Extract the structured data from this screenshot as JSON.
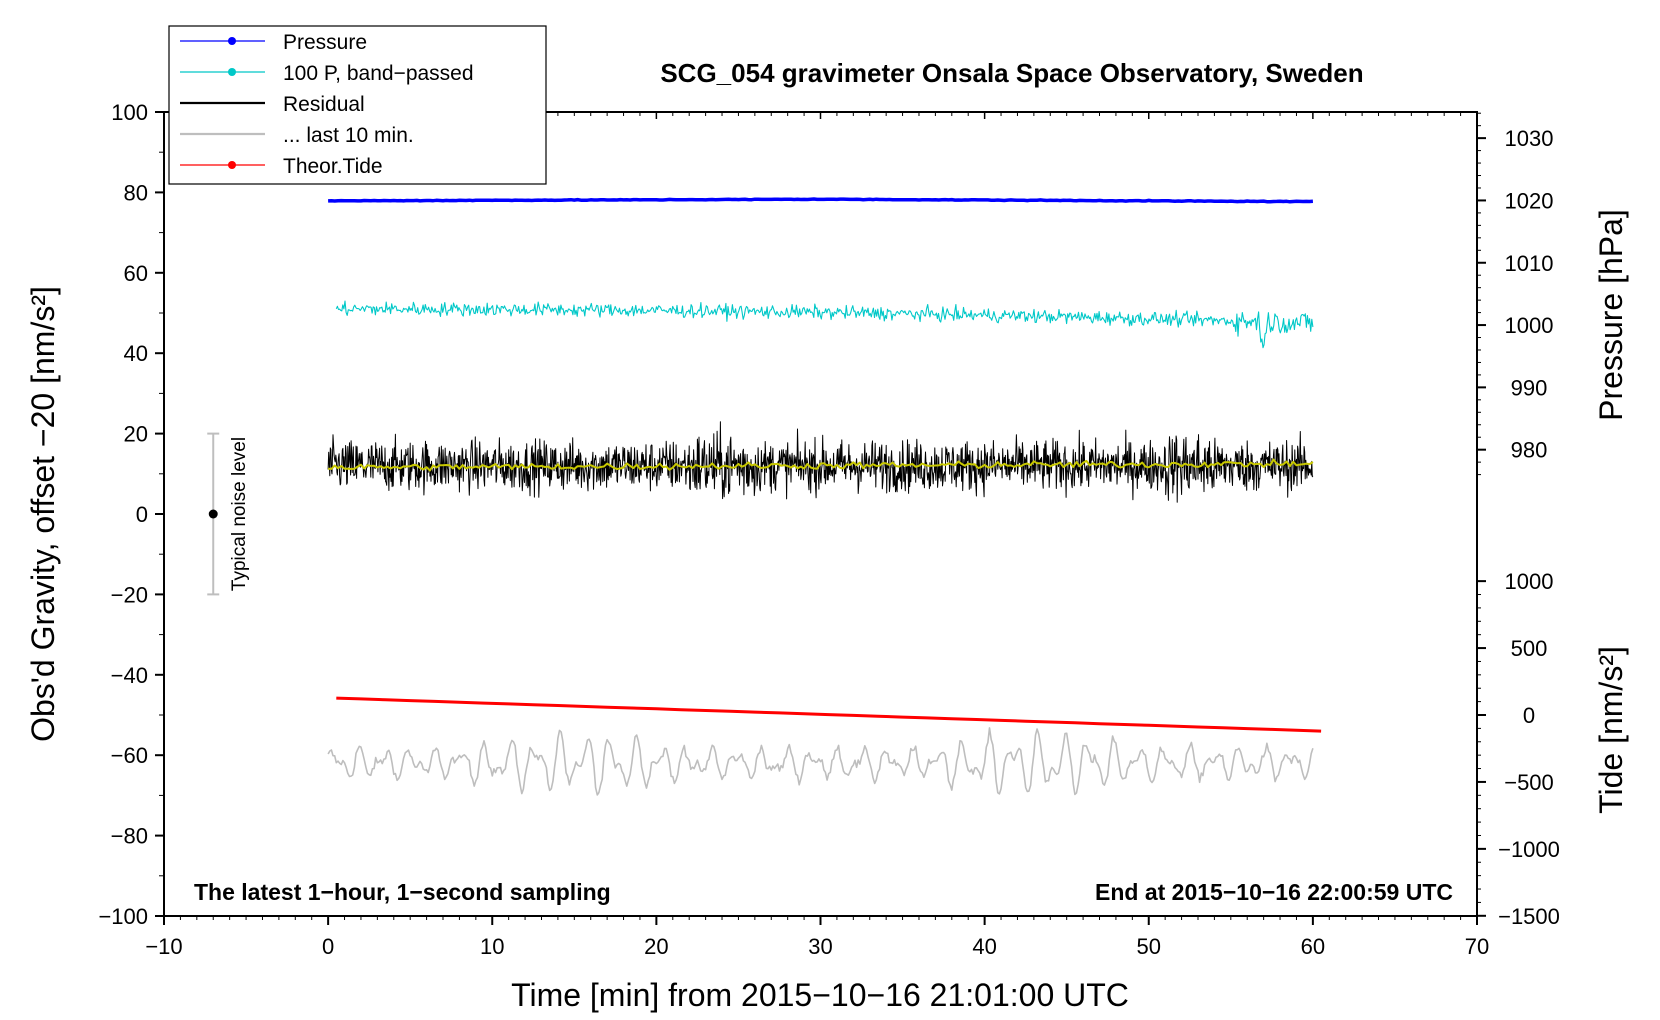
{
  "chart_data": {
    "type": "line",
    "title": "SCG_054 gravimeter Onsala Space Observatory, Sweden",
    "xlabel": "Time [min] from 2015−10−16 21:01:00 UTC",
    "ylabel_left": "Obs'd Gravity, offset −20 [nm/s²]",
    "ylabel_right_pressure": "Pressure [hPa]",
    "ylabel_right_tide": "Tide [nm/s²]",
    "xlim": [
      -10,
      70
    ],
    "ylim_left": [
      -100,
      100
    ],
    "x_ticks": [
      -10,
      0,
      10,
      20,
      30,
      40,
      50,
      60,
      70
    ],
    "x_tick_labels": [
      "−10",
      "0",
      "10",
      "20",
      "30",
      "40",
      "50",
      "60",
      "70"
    ],
    "y_left_ticks": [
      100,
      80,
      60,
      40,
      20,
      0,
      -20,
      -40,
      -60,
      -80,
      -100
    ],
    "y_left_tick_labels": [
      "100",
      "80",
      "60",
      "40",
      "20",
      "0",
      "−20",
      "−40",
      "−60",
      "−80",
      "−100"
    ],
    "pressure_axis": {
      "ticks": [
        1030,
        1020,
        1010,
        1000,
        990,
        980
      ],
      "labels": [
        "1030",
        "1020",
        "1010",
        "1000",
        "990",
        "980"
      ],
      "gravity_at_1020": 78,
      "gravity_per_hpa": 1.55
    },
    "tide_axis": {
      "ticks": [
        1000,
        500,
        0,
        -500,
        -1000,
        -1500
      ],
      "labels": [
        "1000",
        "500",
        "0",
        "−500",
        "−1000",
        "−1500"
      ],
      "gravity_at_0": -50,
      "gravity_per_unit": 0.0333
    },
    "legend": {
      "location": "top-left",
      "entries": [
        {
          "label": "Pressure",
          "color": "#0000ff",
          "marker": true
        },
        {
          "label": "100 P, band−passed",
          "color": "#00c8c8",
          "marker": true
        },
        {
          "label": "Residual",
          "color": "#000000",
          "marker": false
        },
        {
          "label": "... last 10 min.",
          "color": "#bebebe",
          "marker": false
        },
        {
          "label": "Theor.Tide",
          "color": "#ff0000",
          "marker": true
        }
      ]
    },
    "series": [
      {
        "name": "Pressure",
        "color": "#0000ff",
        "x_range": [
          0,
          60
        ],
        "y_start": 77.9,
        "y_peak": 78.3,
        "y_end": 77.7,
        "noise": 0.2
      },
      {
        "name": "100 P, band−passed",
        "color": "#00c8c8",
        "x_range": [
          0.5,
          60
        ],
        "y_start": 51,
        "y_end": 47.5,
        "noise": 1.2
      },
      {
        "name": "Residual",
        "color": "#000000",
        "x_range": [
          0,
          60
        ],
        "y_mean": 12,
        "noise": 4.5
      },
      {
        "name": "Residual smoothed",
        "color": "#c8c800",
        "x_range": [
          0,
          60
        ],
        "y_mean": 12,
        "noise": 0.6
      },
      {
        "name": "Theor.Tide",
        "color": "#ff0000",
        "x_range": [
          0.5,
          60.5
        ],
        "y_start": -45.8,
        "y_end": -54
      },
      {
        "name": "... last 10 min.",
        "color": "#bebebe",
        "x_range": [
          0,
          60
        ],
        "y_mean": -62,
        "amplitude": 6
      }
    ],
    "noise_bar": {
      "label": "Typical noise level",
      "x": -7,
      "y": 0,
      "y_low": -20,
      "y_high": 20
    },
    "annotations": {
      "left": "The latest 1−hour, 1−second sampling",
      "right": "End at 2015−10−16 22:00:59 UTC"
    }
  }
}
